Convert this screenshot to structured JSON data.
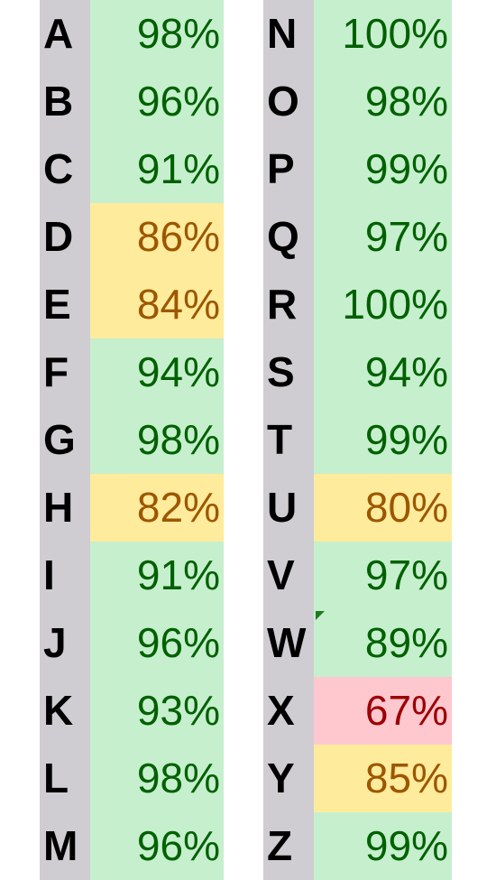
{
  "colors": {
    "good_bg": "#c6efce",
    "good_text": "#006100",
    "mid_bg": "#ffeb9c",
    "mid_text": "#9c5700",
    "bad_bg": "#ffc7ce",
    "bad_text": "#9c0006",
    "letter_bg": "#cfcdd1"
  },
  "left_column": [
    {
      "letter": "A",
      "value": "98%",
      "status": "good"
    },
    {
      "letter": "B",
      "value": "96%",
      "status": "good"
    },
    {
      "letter": "C",
      "value": "91%",
      "status": "good"
    },
    {
      "letter": "D",
      "value": "86%",
      "status": "mid"
    },
    {
      "letter": "E",
      "value": "84%",
      "status": "mid"
    },
    {
      "letter": "F",
      "value": "94%",
      "status": "good"
    },
    {
      "letter": "G",
      "value": "98%",
      "status": "good"
    },
    {
      "letter": "H",
      "value": "82%",
      "status": "mid"
    },
    {
      "letter": "I",
      "value": "91%",
      "status": "good"
    },
    {
      "letter": "J",
      "value": "96%",
      "status": "good"
    },
    {
      "letter": "K",
      "value": "93%",
      "status": "good"
    },
    {
      "letter": "L",
      "value": "98%",
      "status": "good"
    },
    {
      "letter": "M",
      "value": "96%",
      "status": "good"
    }
  ],
  "right_column": [
    {
      "letter": "N",
      "value": "100%",
      "status": "good"
    },
    {
      "letter": "O",
      "value": "98%",
      "status": "good"
    },
    {
      "letter": "P",
      "value": "99%",
      "status": "good"
    },
    {
      "letter": "Q",
      "value": "97%",
      "status": "good"
    },
    {
      "letter": "R",
      "value": "100%",
      "status": "good"
    },
    {
      "letter": "S",
      "value": "94%",
      "status": "good"
    },
    {
      "letter": "T",
      "value": "99%",
      "status": "good"
    },
    {
      "letter": "U",
      "value": "80%",
      "status": "mid"
    },
    {
      "letter": "V",
      "value": "97%",
      "status": "good"
    },
    {
      "letter": "W",
      "value": "89%",
      "status": "good"
    },
    {
      "letter": "X",
      "value": "67%",
      "status": "bad"
    },
    {
      "letter": "Y",
      "value": "85%",
      "status": "mid"
    },
    {
      "letter": "Z",
      "value": "99%",
      "status": "good"
    }
  ]
}
